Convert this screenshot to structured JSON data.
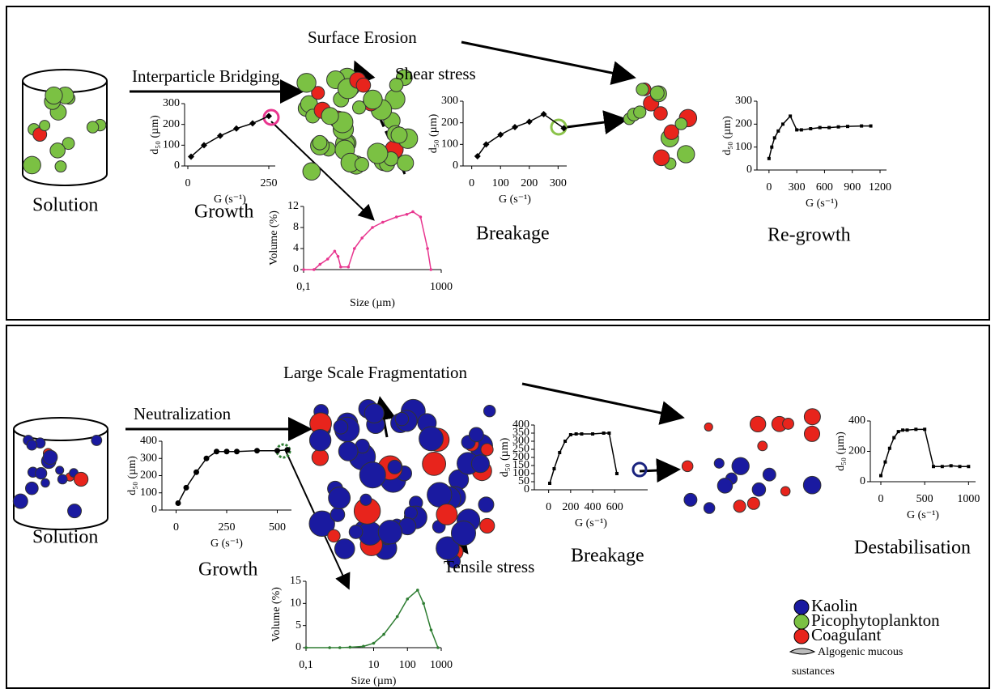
{
  "labels": {
    "top_solution": "Solution",
    "bridging": "Interparticle Bridging",
    "erosion": "Surface Erosion",
    "shear": "Shear stress",
    "top_growth": "Growth",
    "top_breakage": "Breakage",
    "regrowth": "Re-growth",
    "bottom_solution": "Solution",
    "neutralization": "Neutralization",
    "fragmentation": "Large Scale Fragmentation",
    "tensile": "Tensile stress",
    "bottom_growth": "Growth",
    "bottom_breakage": "Breakage",
    "destabilisation": "Destabilisation"
  },
  "legend": [
    "Kaolin",
    "Picophytoplankton",
    "Coagulant",
    "Algogenic mucous",
    "sustances"
  ],
  "chart_data": [
    {
      "type": "line",
      "xlabel": "G (s⁻¹)",
      "ylabel": "d₅₀ (µm)",
      "color": "#000",
      "marker": "diamond",
      "x": [
        10,
        50,
        100,
        150,
        200,
        250
      ],
      "values": [
        45,
        100,
        145,
        180,
        205,
        240
      ],
      "xlim": [
        -10,
        270
      ],
      "ylim": [
        0,
        300
      ],
      "xticks": [
        0,
        250
      ],
      "yticks": [
        0,
        100,
        200,
        300
      ]
    },
    {
      "type": "line",
      "xlabel": "Size (µm)",
      "ylabel": "Volume (%)",
      "color": "#e8368f",
      "marker": "circle",
      "log_x": true,
      "x": [
        0.1,
        0.2,
        0.3,
        0.5,
        0.8,
        1,
        1.2,
        2,
        3,
        5,
        10,
        20,
        50,
        100,
        150,
        250,
        400,
        500
      ],
      "values": [
        0,
        0,
        1,
        2,
        3.5,
        2.5,
        0.5,
        0.5,
        4,
        6,
        8,
        9,
        10,
        10.5,
        11,
        10,
        4,
        0
      ],
      "xlim": [
        0.1,
        1000
      ],
      "ylim": [
        0,
        12
      ],
      "xticks": [
        {
          "value": 0.1,
          "label": "0,1"
        },
        1000
      ],
      "yticks": [
        0,
        4,
        8,
        12
      ]
    },
    {
      "type": "line",
      "xlabel": "G (s⁻¹)",
      "ylabel": "d₅₀ (µm)",
      "color": "#000",
      "marker": "diamond",
      "x": [
        20,
        50,
        100,
        150,
        200,
        250,
        320
      ],
      "values": [
        45,
        100,
        145,
        180,
        205,
        240,
        175
      ],
      "xlim": [
        -30,
        330
      ],
      "ylim": [
        0,
        300
      ],
      "xticks": [
        0,
        100,
        200,
        300
      ],
      "yticks": [
        0,
        100,
        200,
        300
      ]
    },
    {
      "type": "line",
      "xlabel": "G (s⁻¹)",
      "ylabel": "d₅₀ (µm)",
      "color": "#000",
      "marker": "square",
      "x": [
        0,
        30,
        60,
        100,
        150,
        230,
        300,
        350,
        450,
        550,
        650,
        750,
        850,
        1000,
        1100
      ],
      "values": [
        50,
        100,
        140,
        170,
        200,
        235,
        175,
        175,
        180,
        185,
        185,
        188,
        190,
        192,
        192
      ],
      "xlim": [
        -130,
        1270
      ],
      "ylim": [
        0,
        300
      ],
      "xticks": [
        0,
        300,
        600,
        900,
        1200
      ],
      "yticks": [
        0,
        100,
        200,
        300
      ]
    },
    {
      "type": "line",
      "xlabel": "G (s⁻¹)",
      "ylabel": "d₅₀ (µm)",
      "color": "#000",
      "marker": "circle",
      "x": [
        10,
        50,
        100,
        150,
        200,
        250,
        300,
        400,
        500,
        550
      ],
      "values": [
        40,
        130,
        220,
        300,
        340,
        340,
        340,
        345,
        345,
        350
      ],
      "xlim": [
        -70,
        570
      ],
      "ylim": [
        0,
        400
      ],
      "xticks": [
        0,
        250,
        500
      ],
      "yticks": [
        0,
        100,
        200,
        300,
        400
      ]
    },
    {
      "type": "line",
      "xlabel": "Size (µm)",
      "ylabel": "Volume (%)",
      "color": "#2e7d32",
      "marker": "circle",
      "log_x": true,
      "x": [
        0.1,
        0.5,
        1,
        2,
        5,
        10,
        20,
        50,
        100,
        200,
        300,
        500,
        800
      ],
      "values": [
        0,
        0,
        0,
        0.1,
        0.3,
        1,
        3,
        7,
        11,
        13,
        10,
        4,
        0
      ],
      "xlim": [
        0.1,
        1000
      ],
      "ylim": [
        0,
        15
      ],
      "xticks": [
        {
          "value": 0.1,
          "label": "0,1"
        },
        10,
        100,
        1000
      ],
      "yticks": [
        0,
        5,
        10,
        15
      ]
    },
    {
      "type": "line",
      "xlabel": "G (s⁻¹)",
      "ylabel": "d₅₀ (µm)",
      "color": "#000",
      "marker": "square",
      "x": [
        10,
        50,
        100,
        150,
        200,
        250,
        300,
        400,
        500,
        550,
        620
      ],
      "values": [
        40,
        130,
        230,
        300,
        340,
        345,
        345,
        345,
        350,
        350,
        100
      ],
      "xlim": [
        -130,
        900
      ],
      "ylim": [
        0,
        400
      ],
      "xticks": [
        0,
        200,
        400,
        600
      ],
      "yticks": [
        0,
        50,
        100,
        150,
        200,
        250,
        300,
        350,
        400
      ]
    },
    {
      "type": "line",
      "xlabel": "G (s⁻¹)",
      "ylabel": "d₅₀ (µm)",
      "color": "#000",
      "marker": "square",
      "x": [
        0,
        50,
        100,
        150,
        200,
        250,
        300,
        400,
        500,
        600,
        700,
        800,
        900,
        1000
      ],
      "values": [
        40,
        130,
        220,
        290,
        330,
        340,
        340,
        345,
        345,
        100,
        100,
        105,
        100,
        100
      ],
      "xlim": [
        -120,
        1080
      ],
      "ylim": [
        0,
        400
      ],
      "xticks": [
        0,
        500,
        1000
      ],
      "yticks": [
        0,
        200,
        400
      ]
    }
  ]
}
